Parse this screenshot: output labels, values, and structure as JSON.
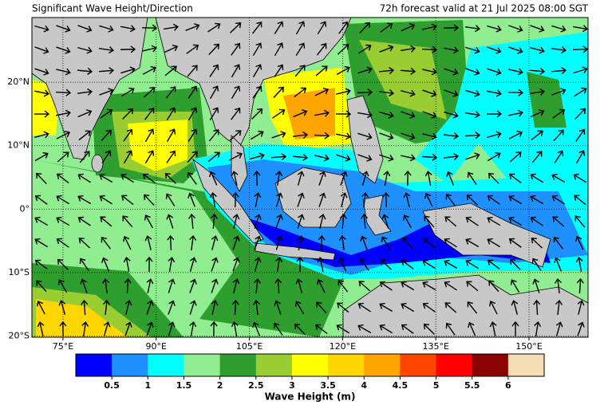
{
  "header": {
    "title": "Significant Wave Height/Direction",
    "valid": "72h forecast valid at 21 Jul 2025 08:00 SGT"
  },
  "map": {
    "xlim": [
      70,
      159.5
    ],
    "ylim": [
      -20.2,
      30.2
    ],
    "lonticks": [
      {
        "value": 75,
        "label": "75°E"
      },
      {
        "value": 90,
        "label": "90°E"
      },
      {
        "value": 105,
        "label": "105°E"
      },
      {
        "value": 120,
        "label": "120°E"
      },
      {
        "value": 135,
        "label": "135°E"
      },
      {
        "value": 150,
        "label": "150°E"
      }
    ],
    "latticks": [
      {
        "value": 20,
        "label": "20°N"
      },
      {
        "value": 10,
        "label": "10°N"
      },
      {
        "value": 0,
        "label": "0°"
      },
      {
        "value": -10,
        "label": "10°S"
      },
      {
        "value": -20,
        "label": "20°S"
      }
    ]
  },
  "colorbar": {
    "title": "Wave Height (m)",
    "colors": [
      "#0000ff",
      "#1e90ff",
      "#00ffff",
      "#90ee90",
      "#2e9e2e",
      "#9acd32",
      "#ffff00",
      "#ffd700",
      "#ffa500",
      "#ff4500",
      "#ff0000",
      "#8b0000",
      "#f5deb3"
    ],
    "ticks": [
      0.5,
      1,
      1.5,
      2,
      2.5,
      3,
      3.5,
      4,
      4.5,
      5,
      5.5,
      6
    ]
  }
}
